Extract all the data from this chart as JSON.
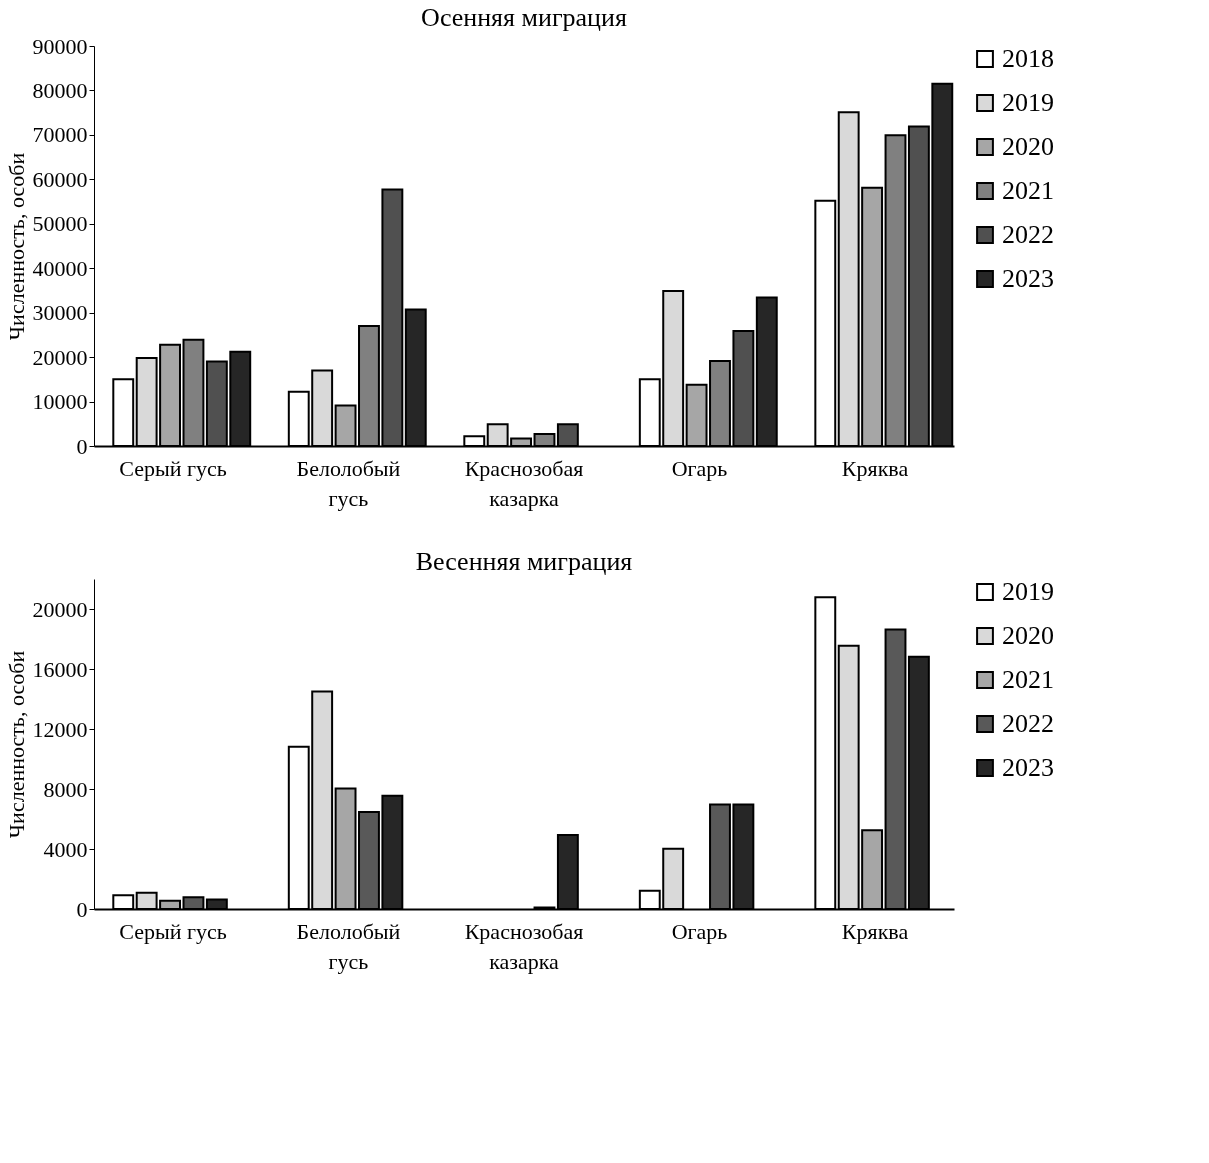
{
  "chart_data": [
    {
      "type": "bar",
      "title": "Осенняя миграция",
      "ylabel": "Численность, особи",
      "categories": [
        "Серый гусь",
        "Белолобый\nгусь",
        "Краснозобая\nказарка",
        "Огарь",
        "Кряква"
      ],
      "ylim": [
        0,
        90000
      ],
      "yticks": [
        0,
        10000,
        20000,
        30000,
        40000,
        50000,
        60000,
        70000,
        80000,
        90000
      ],
      "legend": "right",
      "grid": false,
      "series": [
        {
          "name": "2018",
          "color": "#ffffff",
          "values": [
            15000,
            12200,
            2200,
            15000,
            55200
          ]
        },
        {
          "name": "2019",
          "color": "#d9d9d9",
          "values": [
            19800,
            17000,
            4900,
            34900,
            75100
          ]
        },
        {
          "name": "2020",
          "color": "#a6a6a6",
          "values": [
            22800,
            9100,
            1700,
            13800,
            58100
          ]
        },
        {
          "name": "2021",
          "color": "#808080",
          "values": [
            23900,
            27000,
            2700,
            19100,
            69900
          ]
        },
        {
          "name": "2022",
          "color": "#505050",
          "values": [
            19000,
            57700,
            4900,
            25900,
            71900
          ]
        },
        {
          "name": "2023",
          "color": "#262626",
          "values": [
            21200,
            30700,
            null,
            33400,
            81500
          ]
        }
      ]
    },
    {
      "type": "bar",
      "title": "Весенняя миграция",
      "ylabel": "Численность, особи",
      "categories": [
        "Серый гусь",
        "Белолобый\nгусь",
        "Краснозобая\nказарка",
        "Огарь",
        "Кряква"
      ],
      "ylim": [
        0,
        22000
      ],
      "yticks": [
        0,
        4000,
        8000,
        12000,
        16000,
        20000
      ],
      "legend": "right",
      "grid": false,
      "series": [
        {
          "name": "2019",
          "color": "#ffffff",
          "values": [
            920,
            10820,
            null,
            1220,
            20780
          ]
        },
        {
          "name": "2020",
          "color": "#d9d9d9",
          "values": [
            1080,
            14500,
            null,
            4020,
            17550
          ]
        },
        {
          "name": "2021",
          "color": "#a6a6a6",
          "values": [
            550,
            8040,
            null,
            null,
            5250
          ]
        },
        {
          "name": "2022",
          "color": "#595959",
          "values": [
            780,
            6470,
            100,
            6960,
            18630
          ]
        },
        {
          "name": "2023",
          "color": "#262626",
          "values": [
            630,
            7550,
            4940,
            6960,
            16820
          ]
        }
      ]
    }
  ]
}
